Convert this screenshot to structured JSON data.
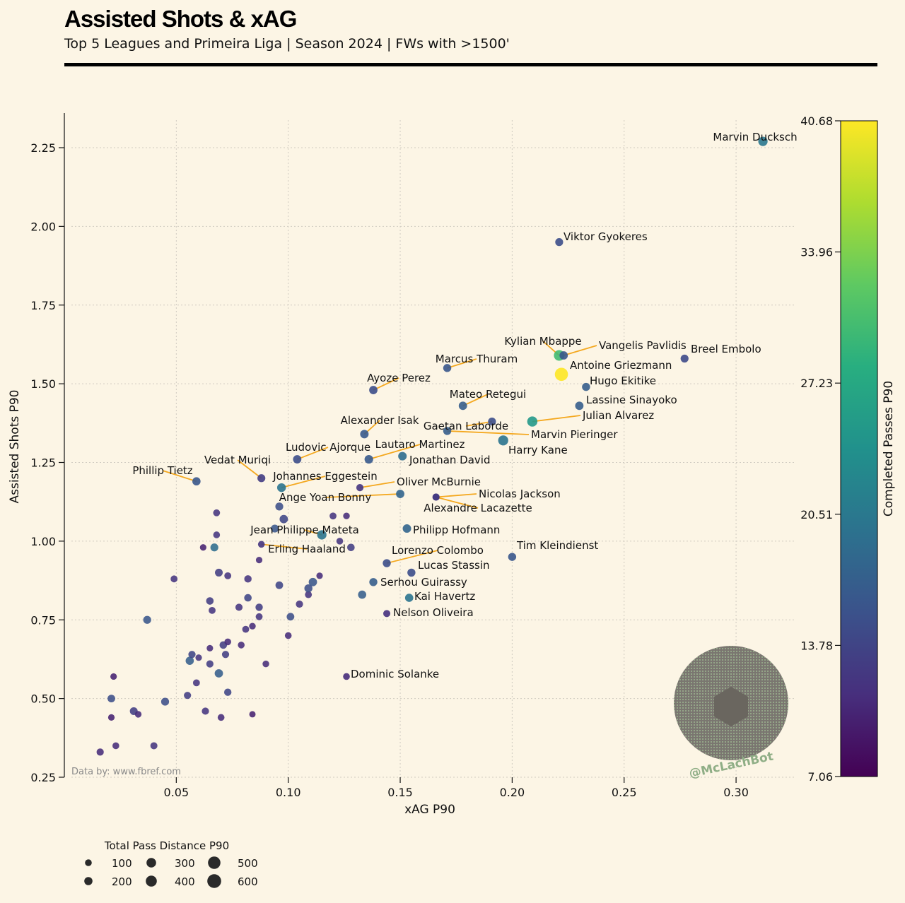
{
  "header": {
    "title": "Assisted Shots & xAG",
    "subtitle": "Top 5 Leagues and Primeira Liga | Season 2024 | FWs with >1500'"
  },
  "source": "Data by: www.fbref.com",
  "watermark": "@McLachBot",
  "chart_data": {
    "type": "scatter",
    "xlabel": "xAG P90",
    "ylabel": "Assisted Shots P90",
    "xlim": [
      0.0,
      0.3265
    ],
    "ylim": [
      0.25,
      2.36
    ],
    "xticks": [
      {
        "v": 0.05,
        "label": "0.05"
      },
      {
        "v": 0.1,
        "label": "0.10"
      },
      {
        "v": 0.15,
        "label": "0.15"
      },
      {
        "v": 0.2,
        "label": "0.20"
      },
      {
        "v": 0.25,
        "label": "0.25"
      },
      {
        "v": 0.3,
        "label": "0.30"
      }
    ],
    "yticks": [
      {
        "v": 0.25,
        "label": "0.25"
      },
      {
        "v": 0.5,
        "label": "0.50"
      },
      {
        "v": 0.75,
        "label": "0.75"
      },
      {
        "v": 1.0,
        "label": "1.00"
      },
      {
        "v": 1.25,
        "label": "1.25"
      },
      {
        "v": 1.5,
        "label": "1.50"
      },
      {
        "v": 1.75,
        "label": "1.75"
      },
      {
        "v": 2.0,
        "label": "2.00"
      },
      {
        "v": 2.25,
        "label": "2.25"
      }
    ],
    "grid": true,
    "colorbar": {
      "label": "Completed Passes P90",
      "min": 7.06,
      "max": 40.68,
      "ticks": [
        "7.06",
        "13.78",
        "20.51",
        "27.23",
        "33.96",
        "40.68"
      ],
      "colormap": "viridis"
    },
    "size_legend": {
      "title": "Total Pass Distance P90",
      "entries": [
        {
          "value": 100,
          "label": "100"
        },
        {
          "value": 200,
          "label": "200"
        },
        {
          "value": 300,
          "label": "300"
        },
        {
          "value": 400,
          "label": "400"
        },
        {
          "value": 500,
          "label": "500"
        },
        {
          "value": 600,
          "label": "600"
        }
      ]
    },
    "labeled_points": [
      {
        "name": "Marvin Ducksch",
        "x": 0.312,
        "y": 2.27,
        "completed_passes": 20.5,
        "pass_distance": 330
      },
      {
        "name": "Viktor Gyokeres",
        "x": 0.221,
        "y": 1.95,
        "completed_passes": 15.0,
        "pass_distance": 230
      },
      {
        "name": "Kylian Mbappe",
        "x": 0.221,
        "y": 1.59,
        "completed_passes": 30.0,
        "pass_distance": 420
      },
      {
        "name": "Vangelis Pavlidis",
        "x": 0.223,
        "y": 1.59,
        "completed_passes": 16.0,
        "pass_distance": 260
      },
      {
        "name": "Breel Embolo",
        "x": 0.277,
        "y": 1.58,
        "completed_passes": 14.5,
        "pass_distance": 230
      },
      {
        "name": "Antoine Griezmann",
        "x": 0.222,
        "y": 1.53,
        "completed_passes": 40.68,
        "pass_distance": 600
      },
      {
        "name": "Marcus Thuram",
        "x": 0.171,
        "y": 1.55,
        "completed_passes": 16.0,
        "pass_distance": 240
      },
      {
        "name": "Hugo Ekitike",
        "x": 0.233,
        "y": 1.49,
        "completed_passes": 17.0,
        "pass_distance": 240
      },
      {
        "name": "Ayoze Perez",
        "x": 0.138,
        "y": 1.48,
        "completed_passes": 15.0,
        "pass_distance": 260
      },
      {
        "name": "Lassine Sinayoko",
        "x": 0.23,
        "y": 1.43,
        "completed_passes": 17.0,
        "pass_distance": 260
      },
      {
        "name": "Mateo Retegui",
        "x": 0.178,
        "y": 1.43,
        "completed_passes": 17.0,
        "pass_distance": 260
      },
      {
        "name": "Julian Alvarez",
        "x": 0.209,
        "y": 1.38,
        "completed_passes": 25.0,
        "pass_distance": 390
      },
      {
        "name": "Gaetan Laborde",
        "x": 0.191,
        "y": 1.38,
        "completed_passes": 15.0,
        "pass_distance": 230
      },
      {
        "name": "Marvin Pieringer",
        "x": 0.171,
        "y": 1.35,
        "completed_passes": 17.0,
        "pass_distance": 240
      },
      {
        "name": "Alexander Isak",
        "x": 0.134,
        "y": 1.34,
        "completed_passes": 16.5,
        "pass_distance": 270
      },
      {
        "name": "Harry Kane",
        "x": 0.196,
        "y": 1.32,
        "completed_passes": 20.0,
        "pass_distance": 380
      },
      {
        "name": "Ludovic Ajorque",
        "x": 0.104,
        "y": 1.26,
        "completed_passes": 15.0,
        "pass_distance": 260
      },
      {
        "name": "Lautaro Martinez",
        "x": 0.136,
        "y": 1.26,
        "completed_passes": 16.5,
        "pass_distance": 280
      },
      {
        "name": "Jonathan David",
        "x": 0.151,
        "y": 1.27,
        "completed_passes": 19.0,
        "pass_distance": 270
      },
      {
        "name": "Vedat Muriqi",
        "x": 0.088,
        "y": 1.2,
        "completed_passes": 13.0,
        "pass_distance": 230
      },
      {
        "name": "Phillip Tietz",
        "x": 0.059,
        "y": 1.19,
        "completed_passes": 16.0,
        "pass_distance": 250
      },
      {
        "name": "Johannes Eggestein",
        "x": 0.097,
        "y": 1.17,
        "completed_passes": 20.0,
        "pass_distance": 290
      },
      {
        "name": "Oliver McBurnie",
        "x": 0.132,
        "y": 1.17,
        "completed_passes": 12.0,
        "pass_distance": 180
      },
      {
        "name": "Ange Yoan Bonny",
        "x": 0.15,
        "y": 1.15,
        "completed_passes": 18.0,
        "pass_distance": 260
      },
      {
        "name": "Nicolas Jackson",
        "x": 0.166,
        "y": 1.14,
        "completed_passes": 12.5,
        "pass_distance": 180
      },
      {
        "name": "Alexandre Lacazette",
        "x": 0.166,
        "y": 1.14,
        "completed_passes": 12.5,
        "pass_distance": 160
      },
      {
        "name": "Philipp Hofmann",
        "x": 0.153,
        "y": 1.04,
        "completed_passes": 18.0,
        "pass_distance": 270
      },
      {
        "name": "Jean Philippe Mateta",
        "x": 0.115,
        "y": 1.02,
        "completed_passes": 20.0,
        "pass_distance": 330
      },
      {
        "name": "Erling Haaland",
        "x": 0.088,
        "y": 0.99,
        "completed_passes": 12.0,
        "pass_distance": 150
      },
      {
        "name": "Tim Kleindienst",
        "x": 0.2,
        "y": 0.95,
        "completed_passes": 16.0,
        "pass_distance": 240
      },
      {
        "name": "Lorenzo Colombo",
        "x": 0.144,
        "y": 0.93,
        "completed_passes": 15.0,
        "pass_distance": 240
      },
      {
        "name": "Lucas Stassin",
        "x": 0.155,
        "y": 0.9,
        "completed_passes": 15.0,
        "pass_distance": 240
      },
      {
        "name": "Serhou Guirassy",
        "x": 0.138,
        "y": 0.87,
        "completed_passes": 17.0,
        "pass_distance": 240
      },
      {
        "name": "Kai Havertz",
        "x": 0.154,
        "y": 0.82,
        "completed_passes": 20.0,
        "pass_distance": 250
      },
      {
        "name": "Nelson Oliveira",
        "x": 0.144,
        "y": 0.77,
        "completed_passes": 11.5,
        "pass_distance": 170
      },
      {
        "name": "Dominic Solanke",
        "x": 0.126,
        "y": 0.57,
        "completed_passes": 11.0,
        "pass_distance": 150
      }
    ],
    "other_points": [
      {
        "x": 0.016,
        "y": 0.33,
        "c": 11,
        "s": 180
      },
      {
        "x": 0.023,
        "y": 0.35,
        "c": 11,
        "s": 150
      },
      {
        "x": 0.04,
        "y": 0.35,
        "c": 12,
        "s": 170
      },
      {
        "x": 0.021,
        "y": 0.44,
        "c": 10,
        "s": 130
      },
      {
        "x": 0.031,
        "y": 0.46,
        "c": 13,
        "s": 220
      },
      {
        "x": 0.033,
        "y": 0.45,
        "c": 11,
        "s": 140
      },
      {
        "x": 0.045,
        "y": 0.49,
        "c": 15,
        "s": 230
      },
      {
        "x": 0.021,
        "y": 0.5,
        "c": 15,
        "s": 210
      },
      {
        "x": 0.022,
        "y": 0.57,
        "c": 10,
        "s": 130
      },
      {
        "x": 0.055,
        "y": 0.51,
        "c": 13,
        "s": 180
      },
      {
        "x": 0.059,
        "y": 0.55,
        "c": 12,
        "s": 160
      },
      {
        "x": 0.063,
        "y": 0.46,
        "c": 12,
        "s": 180
      },
      {
        "x": 0.07,
        "y": 0.44,
        "c": 11,
        "s": 150
      },
      {
        "x": 0.073,
        "y": 0.52,
        "c": 14,
        "s": 190
      },
      {
        "x": 0.069,
        "y": 0.58,
        "c": 17,
        "s": 260
      },
      {
        "x": 0.065,
        "y": 0.61,
        "c": 13,
        "s": 180
      },
      {
        "x": 0.056,
        "y": 0.62,
        "c": 17,
        "s": 250
      },
      {
        "x": 0.057,
        "y": 0.64,
        "c": 14,
        "s": 180
      },
      {
        "x": 0.06,
        "y": 0.63,
        "c": 12,
        "s": 130
      },
      {
        "x": 0.065,
        "y": 0.66,
        "c": 11,
        "s": 130
      },
      {
        "x": 0.072,
        "y": 0.64,
        "c": 13,
        "s": 180
      },
      {
        "x": 0.071,
        "y": 0.67,
        "c": 13,
        "s": 200
      },
      {
        "x": 0.073,
        "y": 0.68,
        "c": 11,
        "s": 150
      },
      {
        "x": 0.084,
        "y": 0.45,
        "c": 10,
        "s": 120
      },
      {
        "x": 0.079,
        "y": 0.67,
        "c": 11,
        "s": 150
      },
      {
        "x": 0.081,
        "y": 0.72,
        "c": 12,
        "s": 160
      },
      {
        "x": 0.084,
        "y": 0.73,
        "c": 11,
        "s": 140
      },
      {
        "x": 0.087,
        "y": 0.76,
        "c": 12,
        "s": 160
      },
      {
        "x": 0.087,
        "y": 0.79,
        "c": 13,
        "s": 190
      },
      {
        "x": 0.078,
        "y": 0.79,
        "c": 12,
        "s": 180
      },
      {
        "x": 0.066,
        "y": 0.78,
        "c": 12,
        "s": 160
      },
      {
        "x": 0.065,
        "y": 0.81,
        "c": 13,
        "s": 200
      },
      {
        "x": 0.082,
        "y": 0.82,
        "c": 14,
        "s": 200
      },
      {
        "x": 0.037,
        "y": 0.75,
        "c": 16,
        "s": 230
      },
      {
        "x": 0.049,
        "y": 0.88,
        "c": 12,
        "s": 160
      },
      {
        "x": 0.069,
        "y": 0.9,
        "c": 13,
        "s": 220
      },
      {
        "x": 0.073,
        "y": 0.89,
        "c": 12,
        "s": 160
      },
      {
        "x": 0.082,
        "y": 0.88,
        "c": 12,
        "s": 190
      },
      {
        "x": 0.087,
        "y": 0.94,
        "c": 11,
        "s": 130
      },
      {
        "x": 0.094,
        "y": 1.04,
        "c": 16,
        "s": 230
      },
      {
        "x": 0.096,
        "y": 1.11,
        "c": 15,
        "s": 230
      },
      {
        "x": 0.098,
        "y": 1.07,
        "c": 14,
        "s": 260
      },
      {
        "x": 0.062,
        "y": 0.98,
        "c": 10,
        "s": 130
      },
      {
        "x": 0.067,
        "y": 0.98,
        "c": 19,
        "s": 230
      },
      {
        "x": 0.068,
        "y": 1.02,
        "c": 12,
        "s": 150
      },
      {
        "x": 0.068,
        "y": 1.09,
        "c": 12,
        "s": 160
      },
      {
        "x": 0.09,
        "y": 0.61,
        "c": 11,
        "s": 140
      },
      {
        "x": 0.096,
        "y": 0.86,
        "c": 14,
        "s": 210
      },
      {
        "x": 0.1,
        "y": 0.7,
        "c": 11,
        "s": 150
      },
      {
        "x": 0.101,
        "y": 0.76,
        "c": 15,
        "s": 210
      },
      {
        "x": 0.105,
        "y": 0.8,
        "c": 12,
        "s": 180
      },
      {
        "x": 0.109,
        "y": 0.83,
        "c": 12,
        "s": 160
      },
      {
        "x": 0.109,
        "y": 0.85,
        "c": 15,
        "s": 240
      },
      {
        "x": 0.111,
        "y": 0.87,
        "c": 16,
        "s": 260
      },
      {
        "x": 0.114,
        "y": 0.89,
        "c": 11,
        "s": 130
      },
      {
        "x": 0.12,
        "y": 1.08,
        "c": 12,
        "s": 160
      },
      {
        "x": 0.126,
        "y": 1.08,
        "c": 11,
        "s": 140
      },
      {
        "x": 0.123,
        "y": 1.0,
        "c": 12,
        "s": 150
      },
      {
        "x": 0.128,
        "y": 0.98,
        "c": 13,
        "s": 200
      },
      {
        "x": 0.133,
        "y": 0.83,
        "c": 17,
        "s": 250
      }
    ]
  }
}
